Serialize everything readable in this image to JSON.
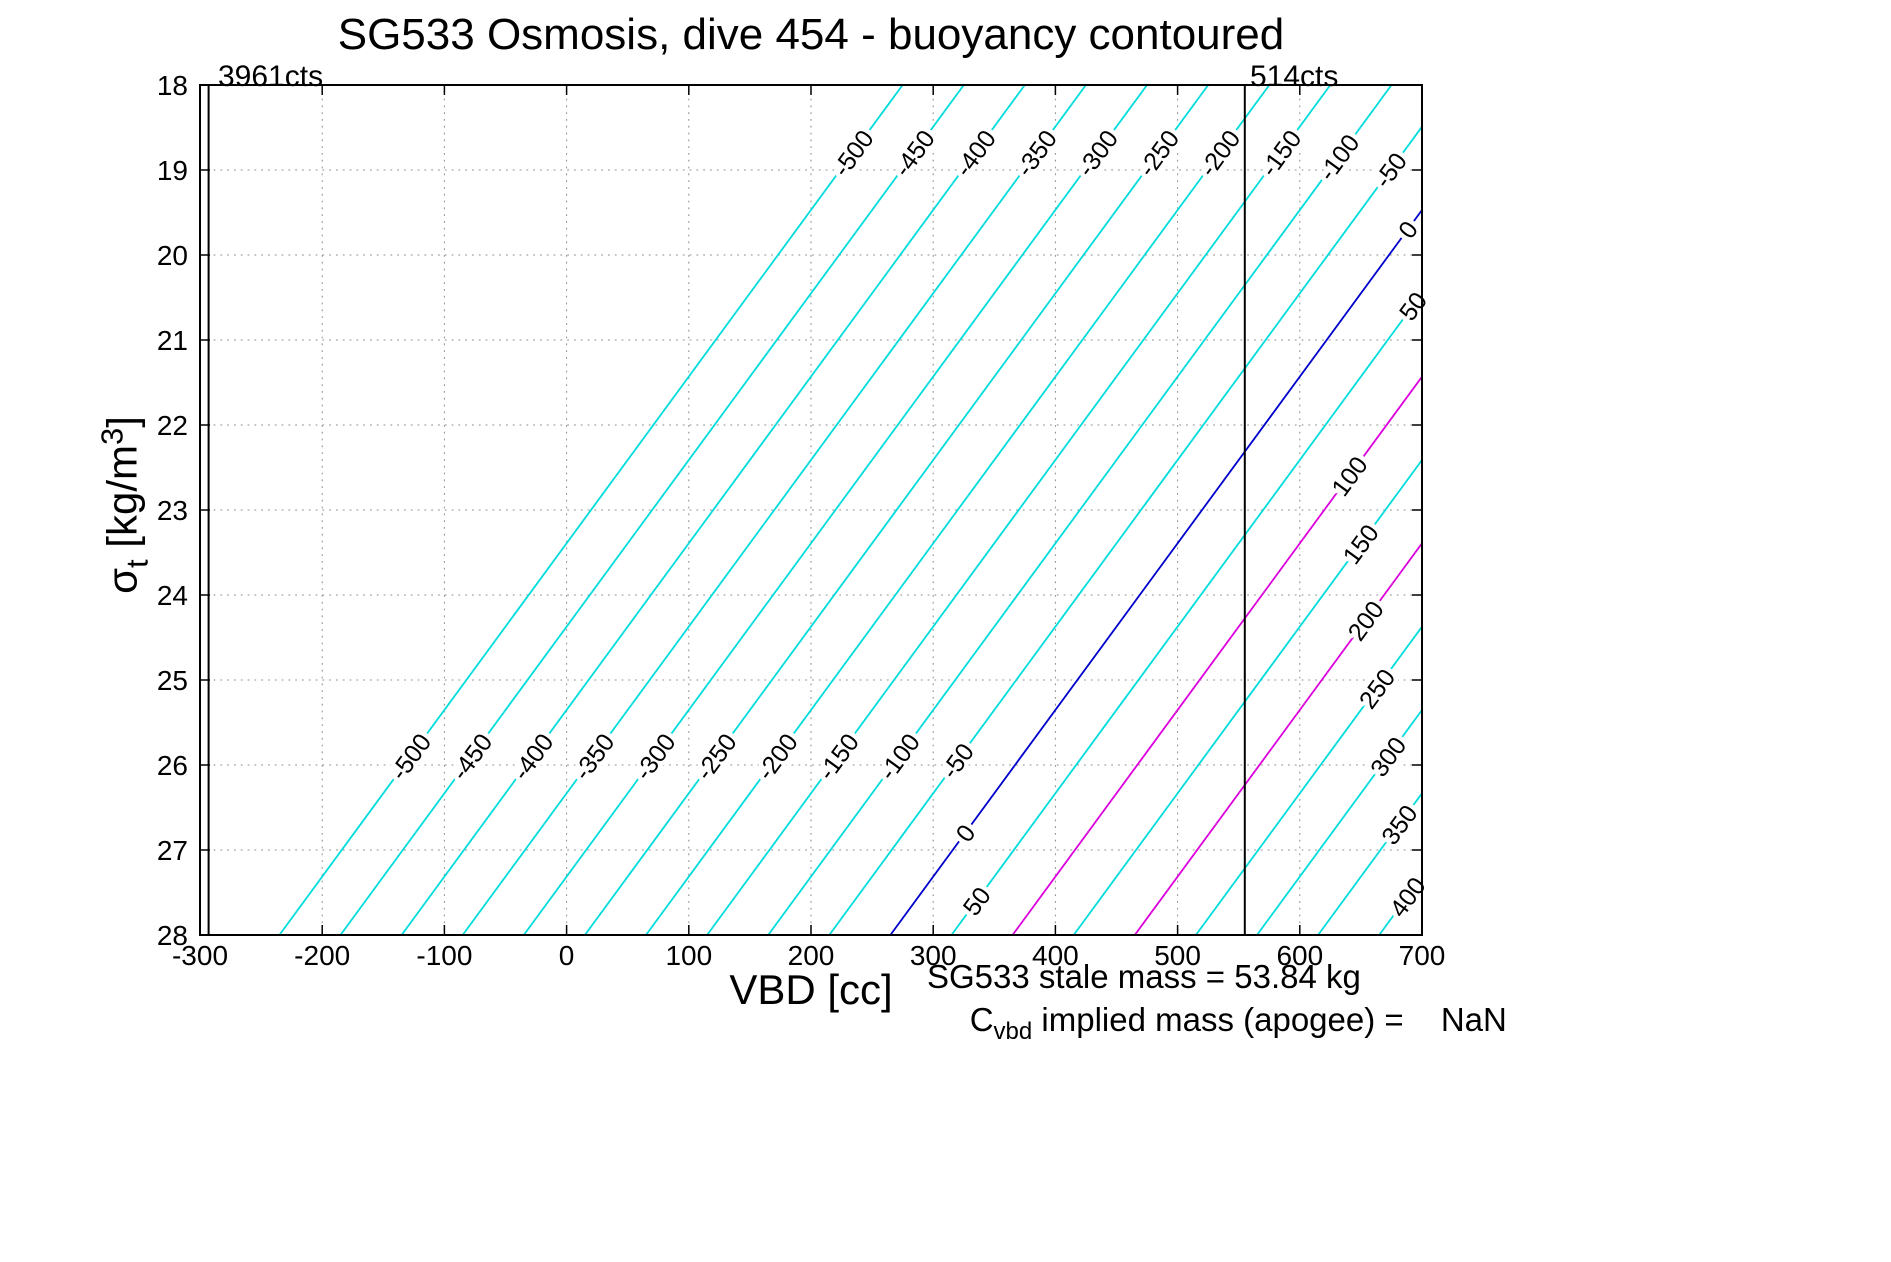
{
  "title": "SG533 Osmosis, dive 454 - buoyancy contoured",
  "xlabel": "VBD [cc]",
  "ylabel": {
    "sigma": "σ",
    "sub": "t",
    "units_pre": " [kg/m",
    "sup": "3",
    "units_post": "]"
  },
  "footer": {
    "stale_mass": "SG533 stale mass = 53.84 kg",
    "implied_prefix": "C",
    "implied_sub": "vbd",
    "implied_rest": " implied mass (apogee) = ",
    "implied_value": "NaN"
  },
  "chart_data": {
    "type": "contour",
    "title": "SG533 Osmosis, dive 454 - buoyancy contoured",
    "xlabel": "VBD [cc]",
    "ylabel": "sigma_t [kg/m^3]",
    "xlim": [
      -300,
      700
    ],
    "ylim": [
      18,
      28
    ],
    "y_axis_reversed": true,
    "grid": "dotted",
    "xticks": [
      -300,
      -200,
      -100,
      0,
      100,
      200,
      300,
      400,
      500,
      600,
      700
    ],
    "yticks": [
      18,
      19,
      20,
      21,
      22,
      23,
      24,
      25,
      26,
      27,
      28
    ],
    "contour_units": "buoyancy",
    "contour_model": {
      "description": "Straight-line contours: VBD[cc] = intercept + dvbd_dB*level + dvbd_dsigma*(sigma_t - 18)",
      "intercept": 775,
      "dvbd_dB": 1.0,
      "dvbd_dsigma": -51
    },
    "levels": [
      {
        "value": -500,
        "label": "-500",
        "color": "#00dcdc",
        "label_sigmas": [
          18.8,
          25.9
        ]
      },
      {
        "value": -450,
        "label": "-450",
        "color": "#00dcdc",
        "label_sigmas": [
          18.8,
          25.9
        ]
      },
      {
        "value": -400,
        "label": "-400",
        "color": "#00dcdc",
        "label_sigmas": [
          18.8,
          25.9
        ]
      },
      {
        "value": -350,
        "label": "-350",
        "color": "#00dcdc",
        "label_sigmas": [
          18.8,
          25.9
        ]
      },
      {
        "value": -300,
        "label": "-300",
        "color": "#00dcdc",
        "label_sigmas": [
          18.8,
          25.9
        ]
      },
      {
        "value": -250,
        "label": "-250",
        "color": "#00dcdc",
        "label_sigmas": [
          18.8,
          25.9
        ]
      },
      {
        "value": -200,
        "label": "-200",
        "color": "#00dcdc",
        "label_sigmas": [
          18.8,
          25.9
        ]
      },
      {
        "value": -150,
        "label": "-150",
        "color": "#00dcdc",
        "label_sigmas": [
          18.8,
          25.9
        ]
      },
      {
        "value": -100,
        "label": "-100",
        "color": "#00dcdc",
        "label_sigmas": [
          18.85,
          25.9
        ]
      },
      {
        "value": -50,
        "label": "-50",
        "color": "#00dcdc",
        "label_sigmas": [
          19.0,
          25.95
        ]
      },
      {
        "value": 0,
        "label": "0",
        "color": "#0000cc",
        "label_sigmas": [
          19.7,
          26.8
        ]
      },
      {
        "value": 50,
        "label": "50",
        "color": "#00dcdc",
        "label_sigmas": [
          20.6,
          27.6
        ]
      },
      {
        "value": 100,
        "label": "100",
        "color": "#dc00dc",
        "label_sigmas": [
          22.6
        ]
      },
      {
        "value": 150,
        "label": "150",
        "color": "#00dcdc",
        "label_sigmas": [
          23.4
        ]
      },
      {
        "value": 200,
        "label": "200",
        "color": "#dc00dc",
        "label_sigmas": [
          24.3
        ]
      },
      {
        "value": 250,
        "label": "250",
        "color": "#00dcdc",
        "label_sigmas": [
          25.1
        ]
      },
      {
        "value": 300,
        "label": "300",
        "color": "#00dcdc",
        "label_sigmas": [
          25.9
        ]
      },
      {
        "value": 350,
        "label": "350",
        "color": "#00dcdc",
        "label_sigmas": [
          26.7
        ]
      },
      {
        "value": 400,
        "label": "400",
        "color": "#00dcdc",
        "label_sigmas": [
          27.55
        ]
      }
    ],
    "vertical_lines": [
      {
        "x": -293,
        "label": "3961cts"
      },
      {
        "x": 555,
        "label": "514cts"
      }
    ]
  }
}
